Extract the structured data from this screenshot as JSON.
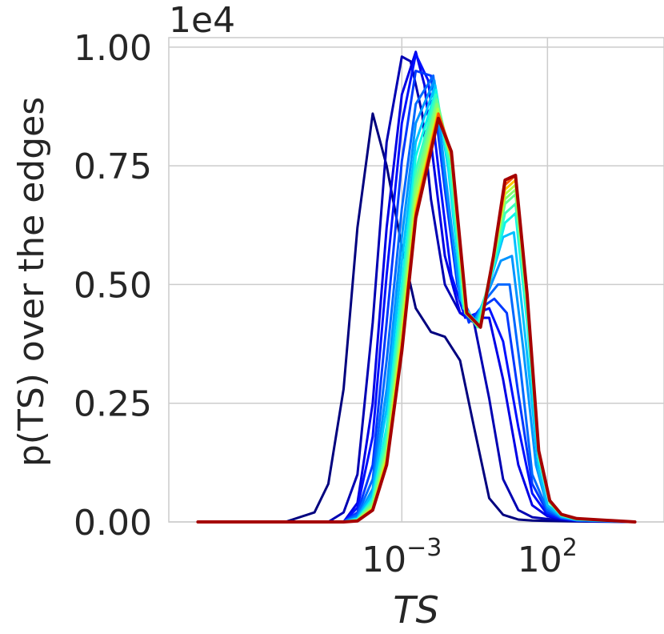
{
  "chart_data": {
    "type": "line",
    "title": "",
    "xlabel": "TS",
    "ylabel": "p(TS) over the edges",
    "offset_label": "1e4",
    "x_scale": "log",
    "xlim": [
      1e-11,
      1000000.0
    ],
    "ylim": [
      0,
      1.02
    ],
    "y_ticks": [
      {
        "value": 0.0,
        "label": "0.00"
      },
      {
        "value": 0.25,
        "label": "0.25"
      },
      {
        "value": 0.5,
        "label": "0.50"
      },
      {
        "value": 0.75,
        "label": "0.75"
      },
      {
        "value": 1.0,
        "label": "1.00"
      }
    ],
    "x_ticks": [
      {
        "value": 0.001,
        "base": "10",
        "exp": "−3"
      },
      {
        "value": 100,
        "base": "10",
        "exp": "2"
      }
    ],
    "grid": true,
    "colormap": "jet",
    "series_count": 16,
    "series": [
      {
        "color": "#00007f",
        "x": [
          1e-10,
          1e-07,
          1e-06,
          3e-06,
          1e-05,
          3e-05,
          0.0001,
          0.0003,
          0.001,
          0.003,
          0.01,
          0.03,
          0.1,
          0.3,
          1,
          3,
          10,
          30,
          100,
          1000,
          100000.0
        ],
        "values": [
          0,
          0,
          0.02,
          0.08,
          0.28,
          0.62,
          0.86,
          0.75,
          0.58,
          0.45,
          0.4,
          0.39,
          0.34,
          0.2,
          0.05,
          0.015,
          0.005,
          0.003,
          0.002,
          0.001,
          0
        ]
      },
      {
        "color": "#0000b2",
        "x": [
          1e-10,
          3e-06,
          1e-05,
          3e-05,
          0.0001,
          0.0003,
          0.001,
          0.002,
          0.005,
          0.01,
          0.03,
          0.1,
          0.3,
          1,
          3,
          10,
          30,
          100,
          300,
          1000,
          100000.0
        ],
        "values": [
          0,
          0,
          0.02,
          0.1,
          0.42,
          0.8,
          0.98,
          0.97,
          0.86,
          0.68,
          0.5,
          0.44,
          0.42,
          0.26,
          0.09,
          0.025,
          0.01,
          0.006,
          0.004,
          0.002,
          0
        ]
      },
      {
        "color": "#0000e5",
        "x": [
          1e-10,
          1e-05,
          3e-05,
          0.0001,
          0.0003,
          0.001,
          0.003,
          0.006,
          0.01,
          0.03,
          0.1,
          0.3,
          1,
          3,
          10,
          30,
          100,
          300,
          1000,
          100000.0
        ],
        "values": [
          0,
          0,
          0.04,
          0.25,
          0.62,
          0.9,
          0.99,
          0.92,
          0.8,
          0.56,
          0.44,
          0.43,
          0.43,
          0.3,
          0.12,
          0.035,
          0.012,
          0.006,
          0.003,
          0
        ]
      },
      {
        "color": "#0010ff",
        "x": [
          1e-10,
          1e-05,
          3e-05,
          0.0001,
          0.0003,
          0.001,
          0.003,
          0.008,
          0.02,
          0.05,
          0.15,
          0.4,
          1,
          3,
          10,
          30,
          100,
          300,
          1000,
          100000.0
        ],
        "values": [
          0,
          0,
          0.03,
          0.18,
          0.52,
          0.84,
          0.985,
          0.93,
          0.72,
          0.52,
          0.43,
          0.44,
          0.45,
          0.38,
          0.2,
          0.06,
          0.015,
          0.007,
          0.003,
          0
        ]
      },
      {
        "color": "#0038ff",
        "x": [
          1e-10,
          1e-05,
          3e-05,
          0.0001,
          0.0003,
          0.001,
          0.003,
          0.01,
          0.03,
          0.08,
          0.2,
          0.5,
          1.5,
          4,
          10,
          30,
          100,
          300,
          1000,
          100000.0
        ],
        "values": [
          0,
          0,
          0.02,
          0.12,
          0.42,
          0.76,
          0.95,
          0.94,
          0.7,
          0.5,
          0.42,
          0.45,
          0.47,
          0.44,
          0.27,
          0.08,
          0.02,
          0.008,
          0.003,
          0
        ]
      },
      {
        "color": "#0068ff",
        "x": [
          1e-10,
          1e-05,
          3e-05,
          0.0001,
          0.0003,
          0.001,
          0.003,
          0.012,
          0.03,
          0.1,
          0.3,
          0.8,
          2,
          5,
          12,
          30,
          100,
          300,
          1000,
          100000.0
        ],
        "values": [
          0,
          0,
          0.015,
          0.09,
          0.34,
          0.66,
          0.88,
          0.94,
          0.72,
          0.48,
          0.42,
          0.47,
          0.5,
          0.5,
          0.32,
          0.1,
          0.025,
          0.009,
          0.004,
          0
        ]
      },
      {
        "color": "#0094ff",
        "x": [
          1e-10,
          1e-05,
          3e-05,
          0.0001,
          0.0003,
          0.001,
          0.003,
          0.013,
          0.03,
          0.1,
          0.3,
          1,
          2.5,
          6,
          15,
          40,
          100,
          300,
          1000,
          100000.0
        ],
        "values": [
          0,
          0,
          0.01,
          0.07,
          0.28,
          0.6,
          0.84,
          0.93,
          0.74,
          0.47,
          0.42,
          0.49,
          0.55,
          0.56,
          0.36,
          0.12,
          0.03,
          0.01,
          0.004,
          0
        ]
      },
      {
        "color": "#00c0ff",
        "x": [
          1e-10,
          1e-05,
          3e-05,
          0.0001,
          0.0003,
          0.001,
          0.003,
          0.014,
          0.04,
          0.12,
          0.35,
          1,
          3,
          7,
          18,
          50,
          100,
          300,
          1000,
          100000.0
        ],
        "values": [
          0,
          0,
          0.008,
          0.06,
          0.24,
          0.55,
          0.8,
          0.92,
          0.74,
          0.46,
          0.42,
          0.5,
          0.6,
          0.61,
          0.38,
          0.11,
          0.035,
          0.012,
          0.005,
          0
        ]
      },
      {
        "color": "#0cf4ea",
        "x": [
          1e-10,
          1e-05,
          3e-05,
          0.0001,
          0.0003,
          0.001,
          0.003,
          0.015,
          0.04,
          0.13,
          0.4,
          1.2,
          3.5,
          8,
          20,
          50,
          120,
          300,
          1000,
          100000.0
        ],
        "values": [
          0,
          0,
          0.006,
          0.05,
          0.2,
          0.5,
          0.77,
          0.91,
          0.75,
          0.45,
          0.42,
          0.52,
          0.63,
          0.65,
          0.42,
          0.13,
          0.04,
          0.013,
          0.005,
          0
        ]
      },
      {
        "color": "#36ffc0",
        "x": [
          1e-10,
          1e-05,
          3e-05,
          0.0001,
          0.0003,
          0.001,
          0.003,
          0.015,
          0.045,
          0.14,
          0.4,
          1.2,
          3.5,
          8,
          20,
          50,
          120,
          300,
          1000,
          100000.0
        ],
        "values": [
          0,
          0,
          0.005,
          0.045,
          0.18,
          0.47,
          0.74,
          0.9,
          0.75,
          0.45,
          0.41,
          0.53,
          0.65,
          0.67,
          0.44,
          0.14,
          0.04,
          0.014,
          0.006,
          0
        ]
      },
      {
        "color": "#5fff97",
        "x": [
          1e-10,
          1e-05,
          3e-05,
          0.0001,
          0.0003,
          0.001,
          0.003,
          0.016,
          0.05,
          0.15,
          0.45,
          1.3,
          3.5,
          8,
          20,
          50,
          120,
          300,
          1000,
          100000.0
        ],
        "values": [
          0,
          0,
          0.004,
          0.04,
          0.16,
          0.44,
          0.72,
          0.89,
          0.76,
          0.45,
          0.41,
          0.54,
          0.67,
          0.69,
          0.45,
          0.14,
          0.04,
          0.014,
          0.006,
          0
        ]
      },
      {
        "color": "#86ff70",
        "x": [
          1e-10,
          1e-05,
          3e-05,
          0.0001,
          0.0003,
          0.001,
          0.003,
          0.016,
          0.05,
          0.15,
          0.45,
          1.3,
          3.5,
          8,
          20,
          50,
          120,
          300,
          1000,
          100000.0
        ],
        "values": [
          0,
          0,
          0.004,
          0.035,
          0.15,
          0.42,
          0.7,
          0.88,
          0.76,
          0.44,
          0.41,
          0.55,
          0.68,
          0.7,
          0.46,
          0.15,
          0.045,
          0.015,
          0.006,
          0
        ]
      },
      {
        "color": "#b3ff43",
        "x": [
          1e-10,
          1e-05,
          3e-05,
          0.0001,
          0.0003,
          0.001,
          0.003,
          0.017,
          0.05,
          0.16,
          0.5,
          1.4,
          3.5,
          8,
          20,
          50,
          120,
          300,
          1000,
          100000.0
        ],
        "values": [
          0,
          0,
          0.003,
          0.03,
          0.14,
          0.4,
          0.68,
          0.87,
          0.77,
          0.44,
          0.41,
          0.55,
          0.69,
          0.71,
          0.47,
          0.15,
          0.045,
          0.015,
          0.007,
          0
        ]
      },
      {
        "color": "#ffc600",
        "x": [
          1e-10,
          1e-05,
          3e-05,
          0.0001,
          0.0003,
          0.001,
          0.003,
          0.017,
          0.05,
          0.16,
          0.5,
          1.4,
          3.5,
          8,
          20,
          50,
          120,
          300,
          1000,
          100000.0
        ],
        "values": [
          0,
          0,
          0.003,
          0.028,
          0.13,
          0.38,
          0.66,
          0.86,
          0.77,
          0.44,
          0.41,
          0.56,
          0.7,
          0.72,
          0.47,
          0.15,
          0.045,
          0.016,
          0.007,
          0
        ]
      },
      {
        "color": "#ff5900",
        "x": [
          1e-10,
          1e-05,
          3e-05,
          0.0001,
          0.0003,
          0.001,
          0.003,
          0.018,
          0.05,
          0.17,
          0.5,
          1.4,
          3.5,
          8,
          20,
          50,
          120,
          300,
          1000,
          100000.0
        ],
        "values": [
          0,
          0,
          0.002,
          0.026,
          0.12,
          0.37,
          0.65,
          0.86,
          0.78,
          0.44,
          0.41,
          0.56,
          0.71,
          0.73,
          0.48,
          0.15,
          0.045,
          0.016,
          0.007,
          0
        ]
      },
      {
        "color": "#a50000",
        "x": [
          1e-10,
          1e-05,
          3e-05,
          0.0001,
          0.0003,
          0.001,
          0.003,
          0.018,
          0.05,
          0.17,
          0.5,
          1.4,
          3.5,
          8,
          20,
          50,
          120,
          300,
          1000,
          100000.0
        ],
        "values": [
          0,
          0,
          0.002,
          0.025,
          0.12,
          0.36,
          0.64,
          0.85,
          0.78,
          0.44,
          0.41,
          0.56,
          0.72,
          0.73,
          0.48,
          0.15,
          0.045,
          0.016,
          0.007,
          0
        ]
      }
    ]
  }
}
